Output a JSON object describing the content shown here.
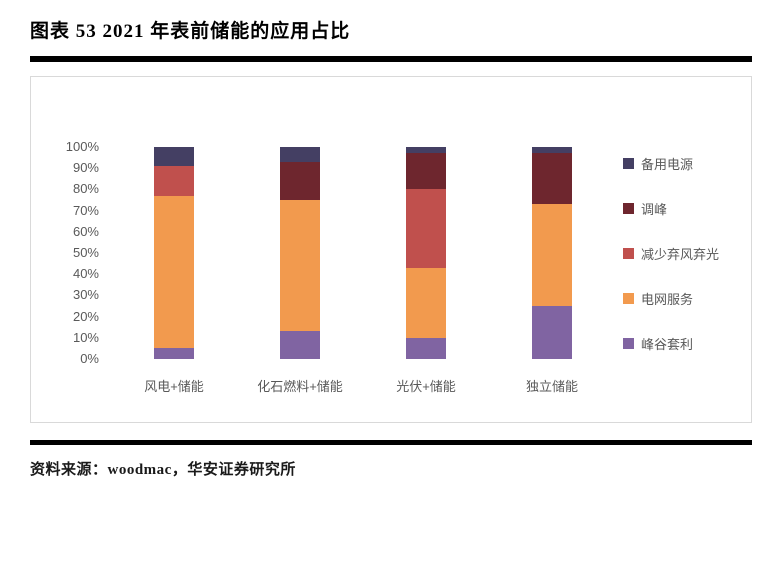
{
  "header": {
    "title": "图表 53 2021 年表前储能的应用占比"
  },
  "footer": {
    "source": "资料来源：woodmac，华安证券研究所"
  },
  "chart_data": {
    "type": "bar",
    "stacked": true,
    "title": "图表 53 2021 年表前储能的应用占比",
    "categories": [
      "风电+储能",
      "化石燃料+储能",
      "光伏+储能",
      "独立储能"
    ],
    "series": [
      {
        "name": "峰谷套利",
        "color": "#8064a2",
        "values": [
          5,
          13,
          10,
          25
        ]
      },
      {
        "name": "电网服务",
        "color": "#f29a4e",
        "values": [
          72,
          62,
          33,
          48
        ]
      },
      {
        "name": "减少弃风弃光",
        "color": "#c0504d",
        "values": [
          14,
          0,
          37,
          0
        ]
      },
      {
        "name": "调峰",
        "color": "#6e262e",
        "values": [
          0,
          18,
          17,
          24
        ]
      },
      {
        "name": "备用电源",
        "color": "#443f63",
        "values": [
          9,
          7,
          3,
          3
        ]
      }
    ],
    "legend_order": [
      "备用电源",
      "调峰",
      "减少弃风弃光",
      "电网服务",
      "峰谷套利"
    ],
    "yticks": [
      "0%",
      "10%",
      "20%",
      "30%",
      "40%",
      "50%",
      "60%",
      "70%",
      "80%",
      "90%",
      "100%"
    ],
    "ylim": [
      0,
      100
    ],
    "ylabel": "",
    "xlabel": "",
    "grid": false,
    "legend_position": "right"
  }
}
